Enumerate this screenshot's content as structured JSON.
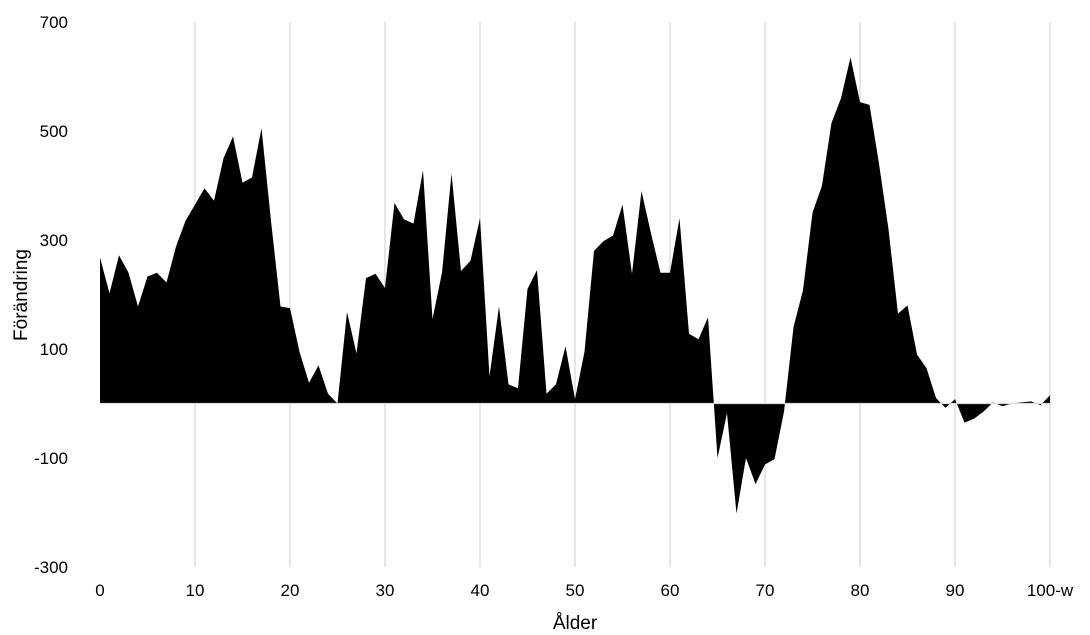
{
  "chart_data": {
    "type": "area",
    "title": "",
    "xlabel": "Ålder",
    "ylabel": "Förändring",
    "xlim": [
      0,
      100
    ],
    "ylim": [
      -300,
      700
    ],
    "grid": "vertical",
    "legend": "none",
    "x_tick_labels": [
      "0",
      "10",
      "20",
      "30",
      "40",
      "50",
      "60",
      "70",
      "80",
      "90",
      "100-w"
    ],
    "x_tick_values": [
      0,
      10,
      20,
      30,
      40,
      50,
      60,
      70,
      80,
      90,
      100
    ],
    "y_tick_labels": [
      "700",
      "500",
      "300",
      "100",
      "-100",
      "-300"
    ],
    "y_tick_values": [
      700,
      500,
      300,
      100,
      -100,
      -300
    ],
    "series": [
      {
        "fill": "#000000",
        "x": [
          0,
          1,
          2,
          3,
          4,
          5,
          6,
          7,
          8,
          9,
          10,
          11,
          12,
          13,
          14,
          15,
          16,
          17,
          18,
          19,
          20,
          21,
          22,
          23,
          24,
          25,
          26,
          27,
          28,
          29,
          30,
          31,
          32,
          33,
          34,
          35,
          36,
          37,
          38,
          39,
          40,
          41,
          42,
          43,
          44,
          45,
          46,
          47,
          48,
          49,
          50,
          51,
          52,
          53,
          54,
          55,
          56,
          57,
          58,
          59,
          60,
          61,
          62,
          63,
          64,
          65,
          66,
          67,
          68,
          69,
          70,
          71,
          72,
          73,
          74,
          75,
          76,
          77,
          78,
          79,
          80,
          81,
          82,
          83,
          84,
          85,
          86,
          87,
          88,
          89,
          90,
          91,
          92,
          93,
          94,
          95,
          96,
          97,
          98,
          99,
          100
        ],
        "values": [
          268,
          202,
          272,
          240,
          178,
          233,
          240,
          222,
          288,
          335,
          365,
          395,
          372,
          450,
          490,
          405,
          415,
          505,
          335,
          178,
          175,
          95,
          38,
          70,
          18,
          0,
          168,
          92,
          230,
          238,
          212,
          368,
          338,
          330,
          428,
          155,
          240,
          422,
          243,
          262,
          340,
          50,
          178,
          35,
          28,
          210,
          245,
          18,
          35,
          105,
          8,
          95,
          280,
          298,
          308,
          365,
          238,
          390,
          312,
          240,
          240,
          340,
          128,
          118,
          158,
          -100,
          -18,
          -202,
          -100,
          -148,
          -112,
          -102,
          -15,
          140,
          208,
          350,
          400,
          515,
          560,
          635,
          553,
          548,
          440,
          320,
          165,
          180,
          90,
          65,
          10,
          -8,
          8,
          -35,
          -28,
          -15,
          2,
          -5,
          0,
          2,
          4,
          -3,
          15
        ]
      }
    ]
  }
}
